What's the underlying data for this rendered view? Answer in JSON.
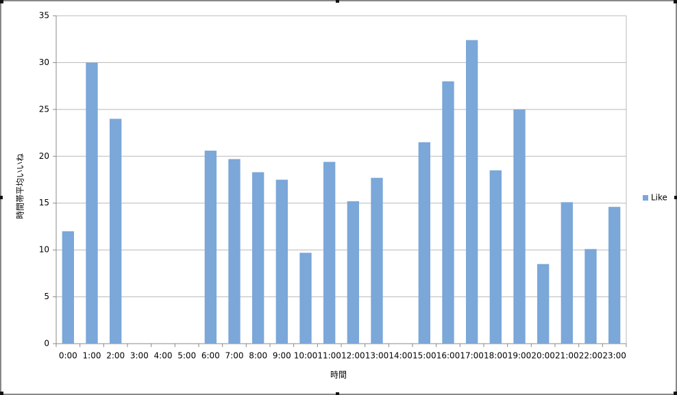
{
  "chart_data": {
    "type": "bar",
    "categories": [
      "0:00",
      "1:00",
      "2:00",
      "3:00",
      "4:00",
      "5:00",
      "6:00",
      "7:00",
      "8:00",
      "9:00",
      "10:00",
      "11:00",
      "12:00",
      "13:00",
      "14:00",
      "15:00",
      "16:00",
      "17:00",
      "18:00",
      "19:00",
      "20:00",
      "21:00",
      "22:00",
      "23:00"
    ],
    "series": [
      {
        "name": "Like",
        "color": "#7ba7d9",
        "values": [
          12,
          30,
          24,
          0,
          0,
          0,
          20.6,
          19.7,
          18.3,
          17.5,
          9.7,
          19.4,
          15.2,
          17.7,
          0,
          21.5,
          28,
          32.4,
          18.5,
          25,
          8.5,
          15.1,
          10.1,
          14.6
        ]
      }
    ],
    "ylim": [
      0,
      35
    ],
    "yticks": [
      0,
      5,
      10,
      15,
      20,
      25,
      30,
      35
    ],
    "grid": true,
    "x_label": "時間",
    "y_label": "時間帯平均いいね",
    "legend": "right"
  }
}
